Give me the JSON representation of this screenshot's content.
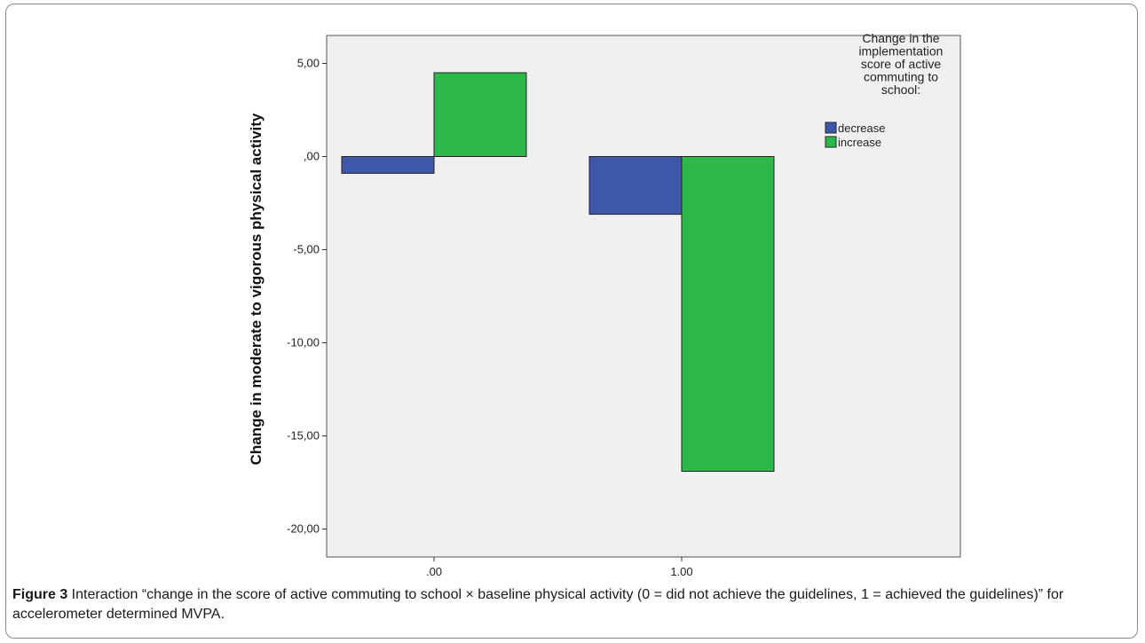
{
  "chart_data": {
    "type": "bar",
    "categories": [
      ".00",
      "1.00"
    ],
    "series": [
      {
        "name": "decrease",
        "values": [
          -0.9,
          -3.1
        ],
        "color": "#3f57a8"
      },
      {
        "name": "increase",
        "values": [
          4.5,
          -16.9
        ],
        "color": "#2db84a"
      }
    ],
    "ylabel": "Change in moderate to vigorous physical activity",
    "xlabel": "",
    "ylim": [
      -21.5,
      6.5
    ],
    "yticks": [
      5,
      0,
      -5,
      -10,
      -15,
      -20
    ],
    "ytick_labels": [
      "5,00",
      ",00",
      "-5,00",
      "-10,00",
      "-15,00",
      "-20,00"
    ],
    "legend": {
      "title_lines": [
        "Change in the",
        "implementation",
        "score of active",
        "commuting to",
        "school:"
      ],
      "placement": "right"
    },
    "plot_background": "#f0f0f0",
    "grid": false
  },
  "caption": {
    "label": "Figure 3",
    "text": " Interaction “change in the score of active commuting to school × baseline physical activity (0 = did not achieve the guidelines, 1 = achieved the guidelines)” for accelerometer determined MVPA."
  }
}
